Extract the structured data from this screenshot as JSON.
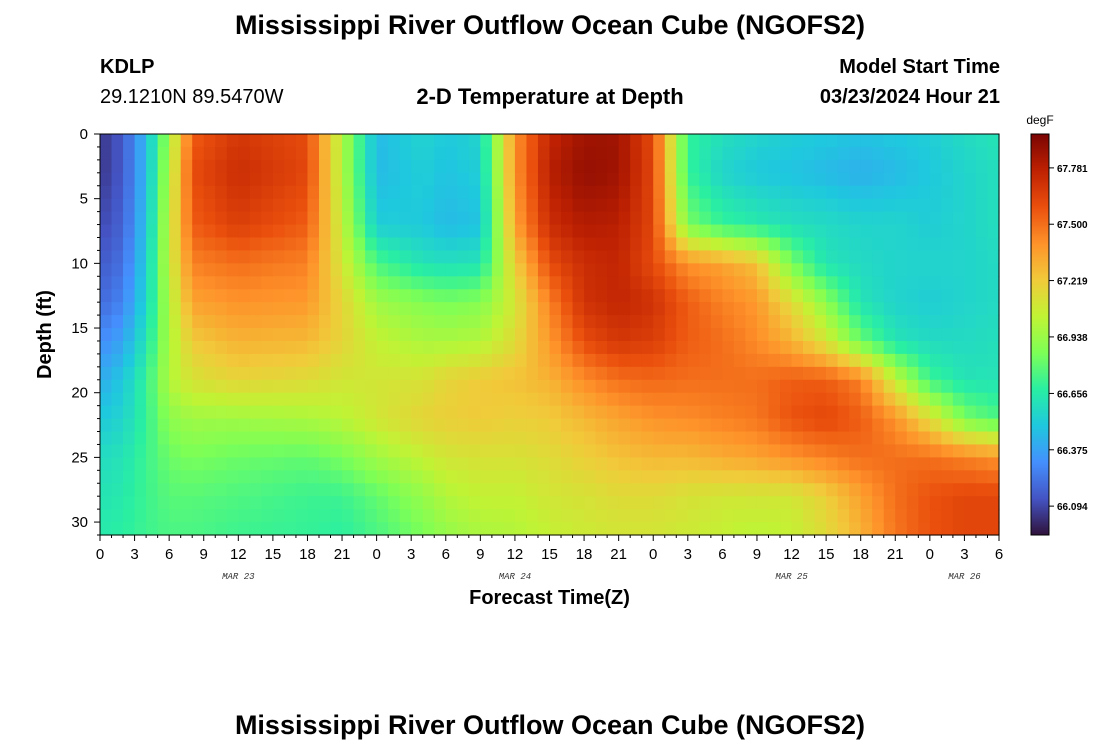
{
  "header": {
    "title": "Mississippi River Outflow Ocean Cube (NGOFS2)",
    "station": "KDLP",
    "coords": "29.1210N  89.5470W",
    "subtitle": "2-D Temperature at Depth",
    "model_start_label": "Model Start Time",
    "model_start_value": "03/23/2024 Hour 21"
  },
  "footer": {
    "title": "Mississippi River Outflow Ocean Cube (NGOFS2)"
  },
  "chart_data": {
    "type": "heatmap",
    "title": "2-D Temperature at Depth",
    "xlabel": "Forecast Time(Z)",
    "ylabel": "Depth (ft)",
    "units": "degF",
    "x_ticks": [
      "0",
      "3",
      "6",
      "9",
      "12",
      "15",
      "18",
      "21",
      "0",
      "3",
      "6",
      "9",
      "12",
      "15",
      "18",
      "21",
      "0",
      "3",
      "6",
      "9",
      "12",
      "15",
      "18",
      "21",
      "0",
      "3",
      "6"
    ],
    "date_labels": [
      {
        "label": "MAR 23",
        "at_hour": 12
      },
      {
        "label": "MAR 24",
        "at_hour": 36
      },
      {
        "label": "MAR 25",
        "at_hour": 60
      },
      {
        "label": "MAR 26",
        "at_hour": 75
      }
    ],
    "x_range_hours": [
      0,
      78
    ],
    "y_ticks": [
      0,
      5,
      10,
      15,
      20,
      25,
      30
    ],
    "ylim": [
      0,
      31
    ],
    "colorbar": {
      "labels": [
        "67.781",
        "67.500",
        "67.219",
        "66.938",
        "66.656",
        "66.375",
        "66.094"
      ],
      "range": [
        65.95,
        67.95
      ],
      "colormap": [
        "#30123b",
        "#4454c4",
        "#4490fe",
        "#1fc8de",
        "#29efa2",
        "#7dff56",
        "#c1f334",
        "#f1ca3a",
        "#fe922a",
        "#ea4f0d",
        "#be2102",
        "#7a0403"
      ]
    },
    "grid": false,
    "legend": "colorbar-right",
    "notes": "Temperature field read visually; values interpolated between control points (hour, depth)",
    "control_points": {
      "hours": [
        0,
        2,
        4,
        6,
        8,
        12,
        18,
        21,
        24,
        28,
        30,
        33,
        36,
        39,
        42,
        45,
        48,
        51,
        54,
        57,
        60,
        63,
        66,
        69,
        72,
        75,
        78
      ],
      "depths": [
        0,
        3,
        7,
        10,
        13,
        16,
        19,
        22,
        25,
        28,
        31
      ],
      "values_degF": [
        [
          66.05,
          66.15,
          66.45,
          66.95,
          67.55,
          67.68,
          67.6,
          67.0,
          66.45,
          66.55,
          66.5,
          66.55,
          67.4,
          67.75,
          67.85,
          67.85,
          67.6,
          66.7,
          66.6,
          66.55,
          66.52,
          66.5,
          66.48,
          66.5,
          66.52,
          66.58,
          66.62
        ],
        [
          66.05,
          66.15,
          66.45,
          67.0,
          67.6,
          67.72,
          67.62,
          67.0,
          66.45,
          66.52,
          66.48,
          66.52,
          67.4,
          67.78,
          67.88,
          67.85,
          67.62,
          66.7,
          66.55,
          66.5,
          66.48,
          66.45,
          66.42,
          66.45,
          66.5,
          66.55,
          66.6
        ],
        [
          66.1,
          66.18,
          66.48,
          67.05,
          67.55,
          67.65,
          67.55,
          67.05,
          66.52,
          66.5,
          66.45,
          66.48,
          67.35,
          67.72,
          67.8,
          67.78,
          67.62,
          66.85,
          66.7,
          66.65,
          66.6,
          66.58,
          66.55,
          66.55,
          66.52,
          66.55,
          66.6
        ],
        [
          66.15,
          66.22,
          66.52,
          67.05,
          67.45,
          67.5,
          67.45,
          67.1,
          66.75,
          66.62,
          66.6,
          66.62,
          67.2,
          67.6,
          67.72,
          67.75,
          67.6,
          67.4,
          67.35,
          67.25,
          66.85,
          66.62,
          66.58,
          66.55,
          66.55,
          66.55,
          66.58
        ],
        [
          66.2,
          66.28,
          66.55,
          67.0,
          67.35,
          67.4,
          67.38,
          67.18,
          66.95,
          66.88,
          66.85,
          66.88,
          67.1,
          67.45,
          67.7,
          67.75,
          67.7,
          67.55,
          67.45,
          67.38,
          67.15,
          66.9,
          66.62,
          66.55,
          66.52,
          66.55,
          66.58
        ],
        [
          66.3,
          66.38,
          66.62,
          66.98,
          67.22,
          67.3,
          67.28,
          67.18,
          67.05,
          66.98,
          66.98,
          67.0,
          67.15,
          67.38,
          67.6,
          67.68,
          67.65,
          67.55,
          67.5,
          67.42,
          67.3,
          67.1,
          66.82,
          66.62,
          66.58,
          66.58,
          66.6
        ],
        [
          66.4,
          66.5,
          66.7,
          67.0,
          67.12,
          67.18,
          67.15,
          67.1,
          67.1,
          67.12,
          67.18,
          67.22,
          67.25,
          67.3,
          67.42,
          67.5,
          67.52,
          67.5,
          67.5,
          67.5,
          67.55,
          67.55,
          67.45,
          67.05,
          66.72,
          66.62,
          66.62
        ],
        [
          66.5,
          66.55,
          66.7,
          66.9,
          66.95,
          66.95,
          66.98,
          67.02,
          67.1,
          67.18,
          67.2,
          67.22,
          67.2,
          67.22,
          67.28,
          67.35,
          67.4,
          67.42,
          67.45,
          67.48,
          67.58,
          67.62,
          67.55,
          67.4,
          67.15,
          66.85,
          66.75
        ],
        [
          66.58,
          66.62,
          66.72,
          66.82,
          66.85,
          66.82,
          66.8,
          66.85,
          66.95,
          67.05,
          67.1,
          67.12,
          67.12,
          67.15,
          67.2,
          67.25,
          67.28,
          67.28,
          67.32,
          67.35,
          67.4,
          67.45,
          67.5,
          67.5,
          67.5,
          67.45,
          67.4
        ],
        [
          66.62,
          66.65,
          66.72,
          66.78,
          66.78,
          66.76,
          66.72,
          66.72,
          66.8,
          66.92,
          67.0,
          67.05,
          67.05,
          67.1,
          67.12,
          67.15,
          67.15,
          67.12,
          67.1,
          67.1,
          67.1,
          67.2,
          67.35,
          67.5,
          67.58,
          67.62,
          67.62
        ],
        [
          66.65,
          66.68,
          66.72,
          66.75,
          66.75,
          66.72,
          66.7,
          66.68,
          66.75,
          66.85,
          66.92,
          66.98,
          67.0,
          67.05,
          67.08,
          67.1,
          67.1,
          67.08,
          67.05,
          67.02,
          67.05,
          67.15,
          67.3,
          67.48,
          67.58,
          67.62,
          67.62
        ]
      ]
    }
  }
}
